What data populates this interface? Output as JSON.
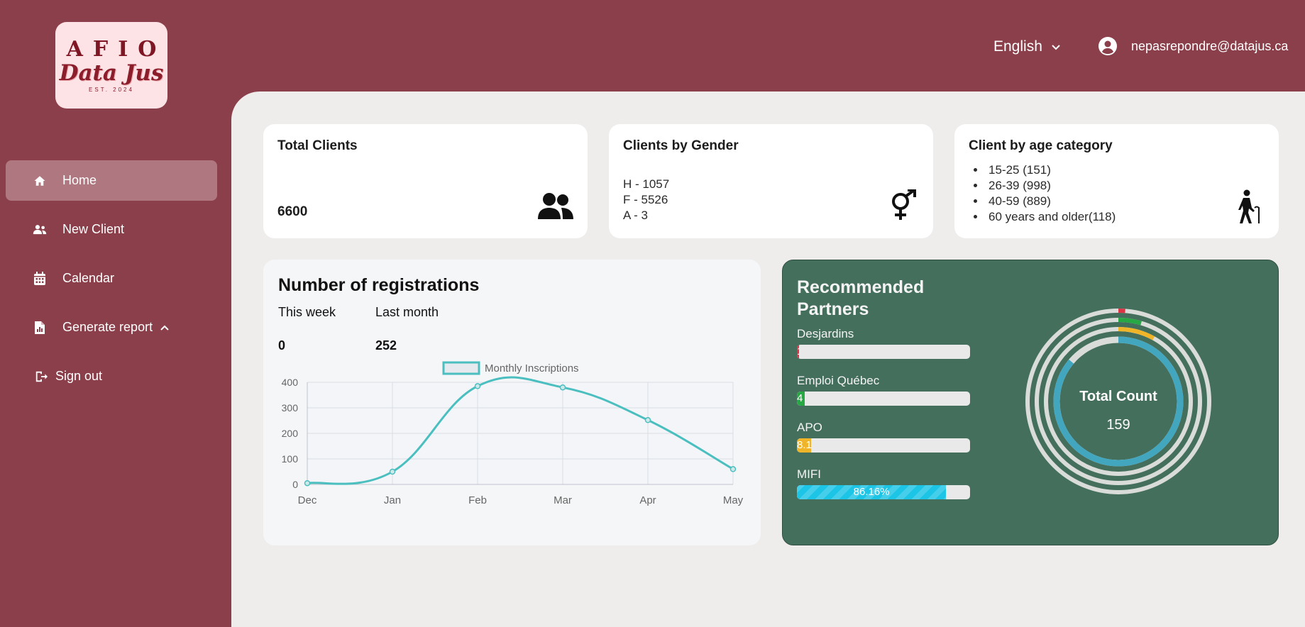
{
  "logo": {
    "line1": "AFIO",
    "line2": "Data Jus",
    "line3": "EST. 2024"
  },
  "sidebar": {
    "items": [
      {
        "label": "Home",
        "icon": "home-icon",
        "active": true
      },
      {
        "label": "New Client",
        "icon": "users-icon"
      },
      {
        "label": "Calendar",
        "icon": "calendar-icon"
      },
      {
        "label": "Generate report",
        "icon": "report-icon",
        "expandable": true
      },
      {
        "label": "Sign out",
        "icon": "sign-out-icon"
      }
    ]
  },
  "header": {
    "language": "English",
    "user_email": "nepasrepondre@datajus.ca"
  },
  "cards": {
    "total_clients": {
      "title": "Total Clients",
      "value": "6600",
      "icon": "users-icon"
    },
    "gender": {
      "title": "Clients by Gender",
      "lines": [
        "H - 1057",
        "F - 5526",
        "A - 3"
      ],
      "icon": "gender-icon"
    },
    "age": {
      "title": "Client by age category",
      "items": [
        "15-25 (151)",
        "26-39 (998)",
        "40-59 (889)",
        "60 years and older(118)"
      ],
      "icon": "elderly-person-icon"
    }
  },
  "registrations": {
    "title": "Number of registrations",
    "this_week_label": "This week",
    "this_week_value": "0",
    "last_month_label": "Last month",
    "last_month_value": "252"
  },
  "chart_data": {
    "type": "line",
    "title": "",
    "x": [
      "Dec",
      "Jan",
      "Feb",
      "Mar",
      "Apr",
      "May"
    ],
    "series": [
      {
        "name": "Monthly Inscriptions",
        "values": [
          5,
          50,
          385,
          380,
          252,
          60
        ],
        "color": "#4bbfbf"
      }
    ],
    "ylim": [
      0,
      400
    ],
    "yticks": [
      0,
      100,
      200,
      300,
      400
    ],
    "grid": true,
    "legend": "top-center"
  },
  "partners": {
    "title": "Recommended Partners",
    "items": [
      {
        "name": "Desjardins",
        "percent": 1.2,
        "label": "1",
        "color": "#dc3545"
      },
      {
        "name": "Emploi Québec",
        "percent": 4.5,
        "label": "4",
        "color": "#28a745"
      },
      {
        "name": "APO",
        "percent": 8.1,
        "label": "8.1",
        "color": "#f0b429"
      },
      {
        "name": "MIFI",
        "percent": 86.16,
        "label": "86.16%",
        "color": "#1cc4e6"
      }
    ],
    "donut": {
      "center_label": "Total Count",
      "center_value": "159",
      "track_color": "#d9dcd9",
      "rings": [
        {
          "name": "Desjardins",
          "percent": 1.2,
          "color": "#dc3545"
        },
        {
          "name": "Emploi Québec",
          "percent": 4.5,
          "color": "#28a745"
        },
        {
          "name": "APO",
          "percent": 8.1,
          "color": "#f0b429"
        },
        {
          "name": "MIFI",
          "percent": 86.16,
          "color": "#43a6bf"
        }
      ]
    }
  }
}
